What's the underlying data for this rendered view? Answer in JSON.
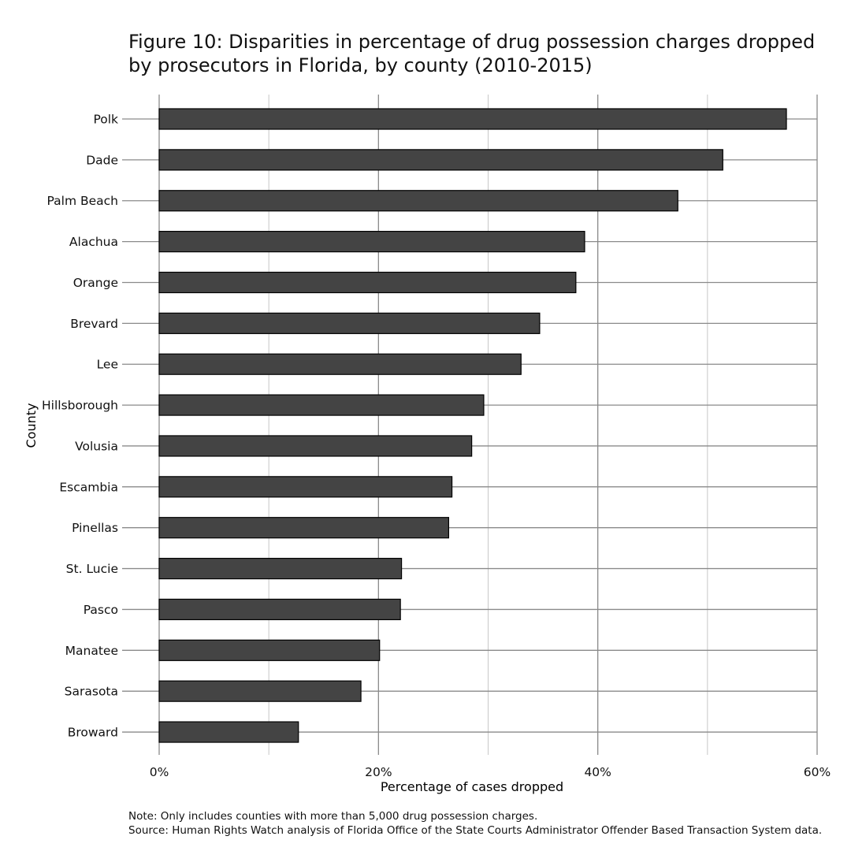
{
  "chart_data": {
    "type": "bar",
    "orientation": "horizontal",
    "title": "Figure 10: Disparities in percentage of drug possession charges dropped by prosecutors in Florida, by county (2010-2015)",
    "xlabel": "Percentage of cases dropped",
    "ylabel": "County",
    "xlim": [
      0,
      60
    ],
    "xticks": [
      0,
      20,
      40,
      60
    ],
    "xtick_labels": [
      "0%",
      "20%",
      "40%",
      "60%"
    ],
    "grid": true,
    "bar_color": "#444444",
    "categories": [
      "Polk",
      "Dade",
      "Palm Beach",
      "Alachua",
      "Orange",
      "Brevard",
      "Lee",
      "Hillsborough",
      "Volusia",
      "Escambia",
      "Pinellas",
      "St. Lucie",
      "Pasco",
      "Manatee",
      "Sarasota",
      "Broward"
    ],
    "values": [
      57.2,
      51.4,
      47.3,
      38.8,
      38.0,
      34.7,
      33.0,
      29.6,
      28.5,
      26.7,
      26.4,
      22.1,
      22.0,
      20.1,
      18.4,
      12.7
    ]
  },
  "notes": {
    "note": "Note: Only includes counties with more than 5,000 drug possession charges.",
    "source": "Source: Human Rights Watch analysis of Florida Office of the State Courts Administrator Offender Based Transaction System data."
  }
}
